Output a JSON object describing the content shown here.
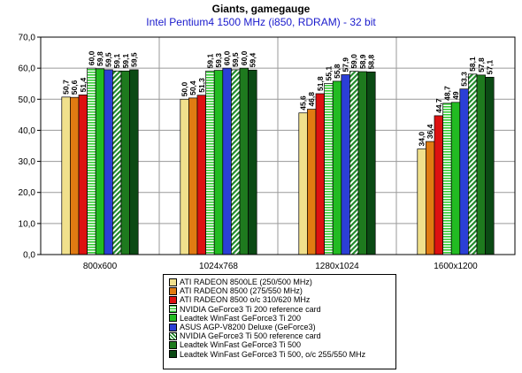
{
  "chart_data": {
    "type": "bar",
    "title": "Giants, gamegauge",
    "subtitle": "Intel Pentium4 1500 MHz (i850, RDRAM) - 32 bit",
    "categories": [
      "800x600",
      "1024x768",
      "1280x1024",
      "1600x1200"
    ],
    "ylim": [
      0,
      70
    ],
    "yticks": [
      "0,0",
      "10,0",
      "20,0",
      "30,0",
      "40,0",
      "50,0",
      "60,0",
      "70,0"
    ],
    "grid": true,
    "legend_position": "bottom",
    "series": [
      {
        "name": "ATI RADEON 8500LE (250/500 MHz)",
        "color": "#f0e08c",
        "pattern": "solid",
        "values": [
          50.7,
          50.0,
          45.6,
          34.0
        ],
        "labels": [
          "50,7",
          "50,0",
          "45,6",
          "34,0"
        ]
      },
      {
        "name": "ATI RADEON 8500 (275/550 MHz)",
        "color": "#e07b12",
        "pattern": "solid",
        "values": [
          50.6,
          50.4,
          46.8,
          36.4
        ],
        "labels": [
          "50,6",
          "50,4",
          "46,8",
          "36,4"
        ]
      },
      {
        "name": "ATI RADEON 8500 o/c 310/620 MHz",
        "color": "#dd1111",
        "pattern": "solid",
        "values": [
          51.4,
          51.3,
          51.8,
          44.7
        ],
        "labels": [
          "51,4",
          "51,3",
          "51,8",
          "44,7"
        ]
      },
      {
        "name": "NVIDIA GeForce3 Ti 200 reference card",
        "color": "#33cc33",
        "pattern": "hstripe",
        "values": [
          60.0,
          59.1,
          55.1,
          48.7
        ],
        "labels": [
          "60,0",
          "59,1",
          "55,1",
          "48,7"
        ]
      },
      {
        "name": "Leadtek WinFast GeForce3 Ti 200",
        "color": "#22bb22",
        "pattern": "solid",
        "values": [
          59.8,
          59.3,
          55.8,
          49.0
        ],
        "labels": [
          "59,8",
          "59,3",
          "55,8",
          "49"
        ]
      },
      {
        "name": "ASUS AGP-V8200 Deluxe (GeForce3)",
        "color": "#2b3fd6",
        "pattern": "solid",
        "values": [
          59.5,
          60.0,
          57.9,
          53.3
        ],
        "labels": [
          "59,5",
          "60,0",
          "57,9",
          "53,3"
        ]
      },
      {
        "name": "NVIDIA GeForce3 Ti 500 reference card",
        "color": "#1f8a2a",
        "pattern": "dstripe",
        "values": [
          59.1,
          59.5,
          59.0,
          58.1
        ],
        "labels": [
          "59,1",
          "59,5",
          "59,0",
          "58,1"
        ]
      },
      {
        "name": "Leadtek WinFast GeForce3 Ti 500",
        "color": "#1e7a1e",
        "pattern": "solid",
        "values": [
          59.1,
          60.0,
          58.9,
          57.8
        ],
        "labels": [
          "59,1",
          "60,0",
          "58,9",
          "57,8"
        ]
      },
      {
        "name": "Leadtek WinFast GeForce3 Ti 500, o/c 255/550 MHz",
        "color": "#0b4a14",
        "pattern": "solid",
        "values": [
          59.5,
          59.4,
          58.8,
          57.1
        ],
        "labels": [
          "59,5",
          "59,4",
          "58,8",
          "57,1"
        ]
      }
    ]
  }
}
